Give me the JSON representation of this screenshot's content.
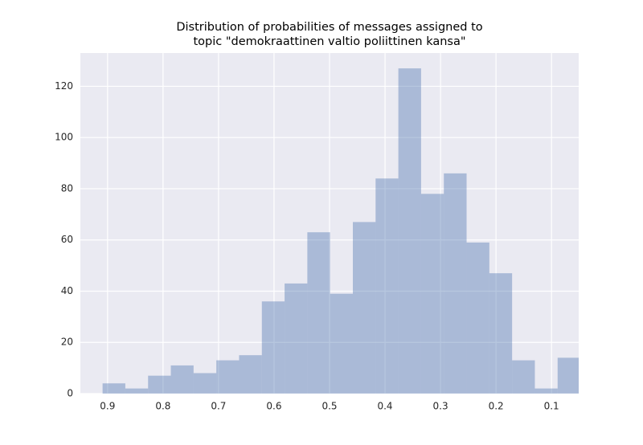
{
  "chart_data": {
    "type": "histogram",
    "title": [
      "Distribution of probabilities of messages assigned to",
      "topic \"demokraattinen valtio poliittinen kansa\""
    ],
    "bins": [
      0.909,
      0.868,
      0.827,
      0.786,
      0.745,
      0.704,
      0.663,
      0.622,
      0.581,
      0.54,
      0.499,
      0.458,
      0.417,
      0.376,
      0.335,
      0.294,
      0.253,
      0.212,
      0.171,
      0.13,
      0.089,
      0.048
    ],
    "values": [
      4,
      2,
      7,
      11,
      8,
      13,
      15,
      36,
      43,
      63,
      39,
      67,
      84,
      127,
      78,
      86,
      59,
      47,
      13,
      2,
      14
    ],
    "color": "#4c72b0",
    "alpha": 0.4,
    "xlim": [
      0.949,
      0.051
    ],
    "xticks": [
      0.9,
      0.8,
      0.7,
      0.6,
      0.5,
      0.4,
      0.3,
      0.2,
      0.1
    ],
    "ylim": [
      0,
      133
    ],
    "yticks": [
      0,
      20,
      40,
      60,
      80,
      100,
      120
    ],
    "grid": true
  }
}
